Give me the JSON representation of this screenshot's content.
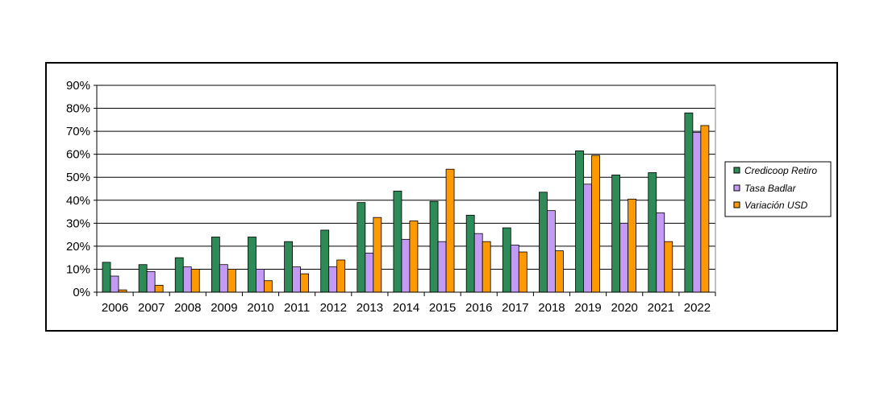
{
  "chart_data": {
    "type": "bar",
    "title": "",
    "xlabel": "",
    "ylabel": "",
    "categories": [
      "2006",
      "2007",
      "2008",
      "2009",
      "2010",
      "2011",
      "2012",
      "2013",
      "2014",
      "2015",
      "2016",
      "2017",
      "2018",
      "2019",
      "2020",
      "2021",
      "2022"
    ],
    "series": [
      {
        "name": "Credicoop Retiro",
        "color": "#2e8b57",
        "values": [
          13,
          12,
          15,
          24,
          24,
          22,
          27,
          39,
          44,
          39.5,
          33.5,
          28,
          43.5,
          61.5,
          51,
          52,
          78
        ]
      },
      {
        "name": "Tasa Badlar",
        "color": "#c39bf5",
        "values": [
          7,
          9,
          11,
          12,
          10,
          11,
          11,
          17,
          23,
          22,
          25.5,
          20.5,
          35.5,
          47,
          30,
          34.5,
          69.5
        ]
      },
      {
        "name": "Variación USD",
        "color": "#ff9900",
        "values": [
          1,
          3,
          10,
          10,
          5,
          8,
          14,
          32.5,
          31,
          53.5,
          22,
          17.5,
          18,
          59.5,
          40.5,
          22,
          72.5
        ]
      }
    ],
    "ylim": [
      0,
      90
    ],
    "yticks": [
      "0%",
      "10%",
      "20%",
      "30%",
      "40%",
      "50%",
      "60%",
      "70%",
      "80%",
      "90%"
    ],
    "grid": true,
    "legend_position": "right"
  }
}
